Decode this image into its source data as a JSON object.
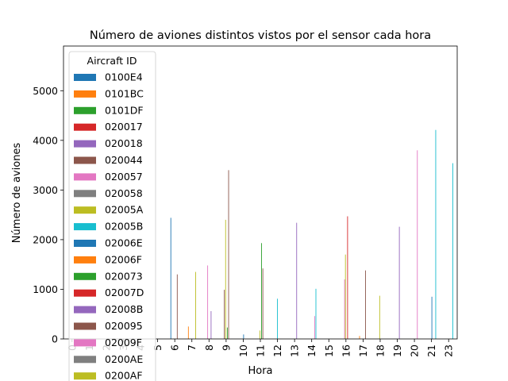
{
  "chart_data": {
    "type": "bar",
    "title": "Número de aviones distintos vistos por el sensor cada hora",
    "xlabel": "Hora",
    "ylabel": "Número de aviones",
    "categories": [
      "0",
      "1",
      "2",
      "3",
      "4",
      "5",
      "6",
      "7",
      "8",
      "9",
      "10",
      "11",
      "12",
      "13",
      "14",
      "15",
      "16",
      "17",
      "18",
      "19",
      "20",
      "21",
      "23"
    ],
    "ylim": [
      0,
      5900
    ],
    "yticks": [
      0,
      1000,
      2000,
      3000,
      4000,
      5000
    ],
    "grid": false,
    "legend_title": "Aircraft ID",
    "legend_position": "upper-left",
    "series_count_per_category": 20,
    "series": [
      {
        "name": "0100E4",
        "color": "#1f77b4",
        "values": [
          0,
          0,
          0,
          0,
          0,
          0,
          2440,
          0,
          0,
          0,
          0,
          0,
          0,
          0,
          0,
          0,
          0,
          0,
          0,
          0,
          0,
          0,
          0
        ]
      },
      {
        "name": "0101BC",
        "color": "#ff7f0e",
        "values": [
          0,
          0,
          0,
          0,
          0,
          0,
          0,
          250,
          0,
          0,
          0,
          0,
          0,
          0,
          0,
          0,
          0,
          60,
          0,
          0,
          0,
          0,
          0
        ]
      },
      {
        "name": "0101DF",
        "color": "#2ca02c",
        "values": [
          0,
          0,
          0,
          0,
          0,
          0,
          0,
          0,
          0,
          0,
          0,
          0,
          0,
          0,
          0,
          0,
          0,
          0,
          0,
          0,
          0,
          0,
          0
        ]
      },
      {
        "name": "020017",
        "color": "#d62728",
        "values": [
          0,
          0,
          0,
          0,
          0,
          0,
          0,
          0,
          0,
          0,
          0,
          0,
          0,
          0,
          0,
          0,
          0,
          0,
          0,
          0,
          0,
          0,
          0
        ]
      },
      {
        "name": "020018",
        "color": "#9467bd",
        "values": [
          0,
          0,
          0,
          0,
          0,
          0,
          0,
          0,
          0,
          0,
          0,
          0,
          0,
          0,
          0,
          0,
          0,
          0,
          0,
          0,
          0,
          0,
          0
        ]
      },
      {
        "name": "020044",
        "color": "#8c564b",
        "values": [
          0,
          0,
          0,
          0,
          0,
          0,
          0,
          0,
          0,
          990,
          0,
          0,
          0,
          0,
          0,
          0,
          0,
          0,
          0,
          0,
          0,
          0,
          0
        ]
      },
      {
        "name": "020057",
        "color": "#e377c2",
        "values": [
          0,
          0,
          0,
          0,
          0,
          0,
          0,
          0,
          1480,
          0,
          0,
          0,
          0,
          0,
          0,
          0,
          1200,
          0,
          0,
          0,
          0,
          0,
          0
        ]
      },
      {
        "name": "020058",
        "color": "#7f7f7f",
        "values": [
          0,
          0,
          0,
          0,
          0,
          0,
          0,
          0,
          0,
          0,
          0,
          0,
          0,
          0,
          0,
          0,
          0,
          0,
          0,
          0,
          0,
          0,
          0
        ]
      },
      {
        "name": "02005A",
        "color": "#bcbd22",
        "values": [
          0,
          0,
          0,
          0,
          0,
          0,
          0,
          0,
          0,
          2400,
          0,
          170,
          0,
          0,
          0,
          0,
          1700,
          0,
          870,
          0,
          0,
          0,
          0
        ]
      },
      {
        "name": "02005B",
        "color": "#17becf",
        "values": [
          0,
          0,
          0,
          0,
          0,
          0,
          0,
          0,
          0,
          0,
          0,
          0,
          810,
          0,
          0,
          0,
          0,
          0,
          0,
          0,
          0,
          0,
          0
        ]
      },
      {
        "name": "02006E",
        "color": "#1f77b4",
        "values": [
          0,
          0,
          0,
          0,
          0,
          0,
          0,
          0,
          0,
          0,
          90,
          0,
          0,
          0,
          0,
          0,
          0,
          0,
          0,
          0,
          0,
          850,
          0
        ]
      },
      {
        "name": "02006F",
        "color": "#ff7f0e",
        "values": [
          0,
          0,
          0,
          0,
          0,
          0,
          0,
          0,
          0,
          0,
          0,
          0,
          0,
          0,
          0,
          0,
          0,
          0,
          0,
          0,
          0,
          0,
          0
        ]
      },
      {
        "name": "020073",
        "color": "#2ca02c",
        "values": [
          0,
          0,
          0,
          0,
          0,
          0,
          0,
          0,
          0,
          230,
          0,
          1930,
          0,
          0,
          0,
          0,
          0,
          0,
          0,
          0,
          0,
          0,
          0
        ]
      },
      {
        "name": "02007D",
        "color": "#d62728",
        "values": [
          0,
          0,
          0,
          0,
          0,
          0,
          0,
          0,
          0,
          0,
          0,
          0,
          0,
          0,
          0,
          0,
          2470,
          0,
          0,
          0,
          0,
          0,
          0
        ]
      },
      {
        "name": "02008B",
        "color": "#9467bd",
        "values": [
          0,
          0,
          0,
          0,
          0,
          0,
          0,
          0,
          560,
          0,
          0,
          0,
          0,
          2340,
          0,
          0,
          0,
          0,
          0,
          2260,
          0,
          0,
          0
        ]
      },
      {
        "name": "020095",
        "color": "#8c564b",
        "values": [
          0,
          0,
          0,
          0,
          0,
          0,
          1300,
          0,
          0,
          3400,
          0,
          1420,
          0,
          0,
          0,
          0,
          0,
          1380,
          0,
          0,
          0,
          0,
          0
        ]
      },
      {
        "name": "02009F",
        "color": "#e377c2",
        "values": [
          0,
          0,
          0,
          0,
          0,
          0,
          0,
          0,
          0,
          0,
          0,
          0,
          0,
          0,
          460,
          0,
          0,
          0,
          0,
          0,
          3800,
          0,
          0
        ]
      },
      {
        "name": "0200AE",
        "color": "#7f7f7f",
        "values": [
          0,
          0,
          0,
          0,
          0,
          0,
          0,
          0,
          0,
          0,
          0,
          0,
          0,
          0,
          0,
          0,
          0,
          0,
          0,
          0,
          0,
          0,
          0
        ]
      },
      {
        "name": "0200AF",
        "color": "#bcbd22",
        "values": [
          0,
          0,
          0,
          0,
          0,
          0,
          0,
          1350,
          0,
          0,
          0,
          0,
          0,
          0,
          0,
          0,
          0,
          0,
          0,
          0,
          0,
          0,
          0
        ]
      },
      {
        "name": "",
        "color": "#17becf",
        "values": [
          0,
          0,
          0,
          0,
          0,
          0,
          0,
          0,
          0,
          0,
          0,
          0,
          0,
          0,
          1010,
          0,
          0,
          0,
          0,
          0,
          0,
          4210,
          3540
        ]
      }
    ]
  }
}
